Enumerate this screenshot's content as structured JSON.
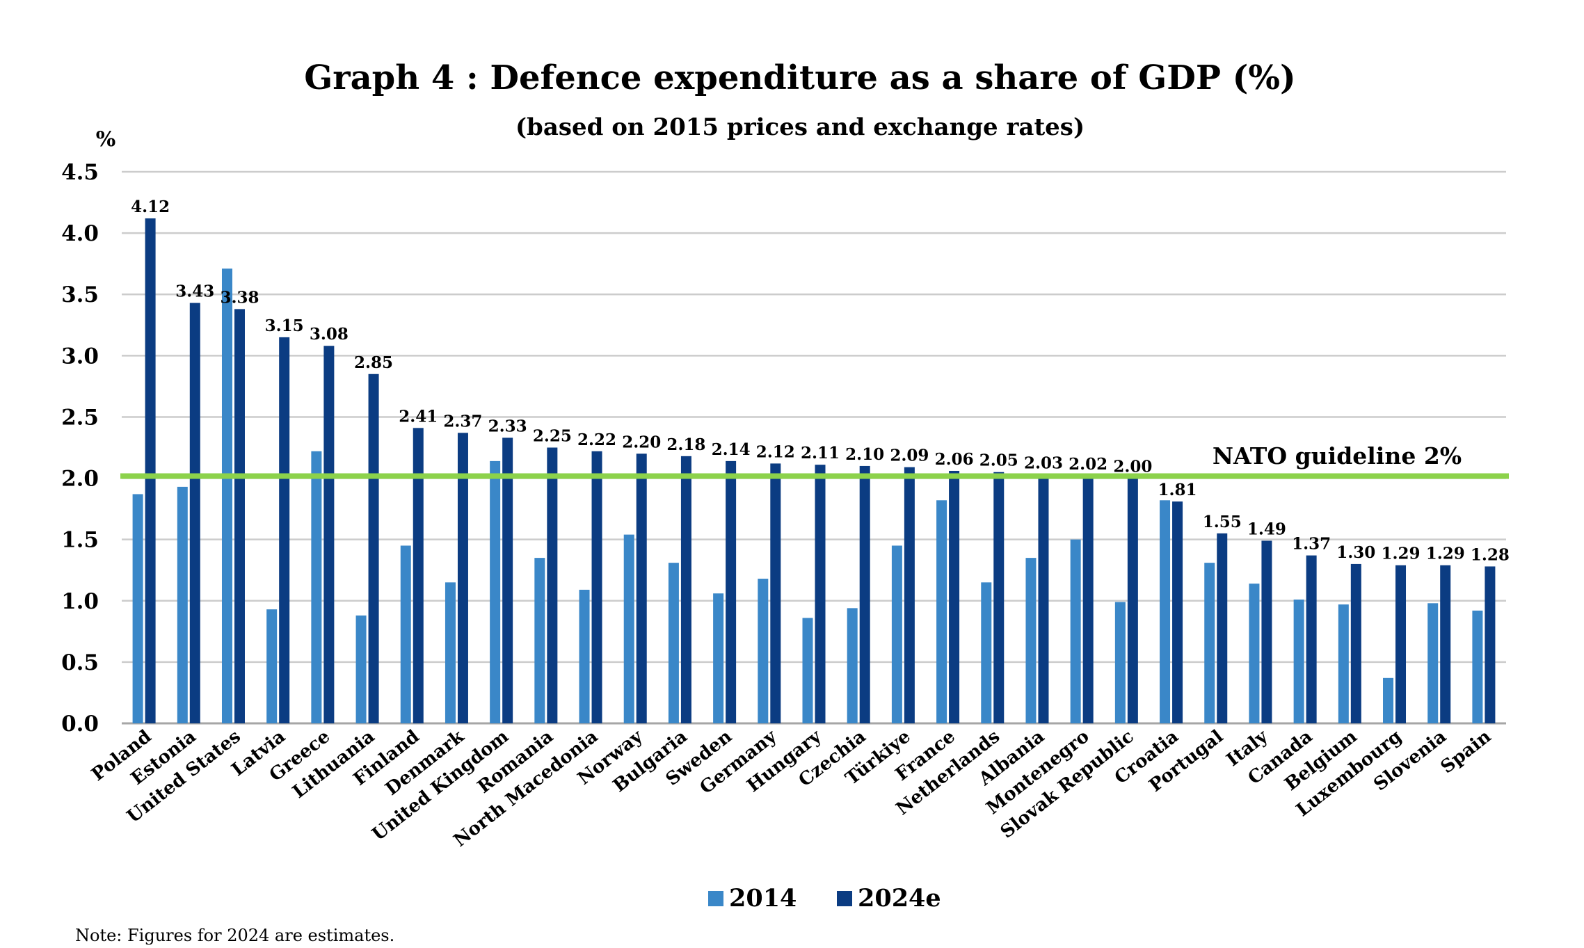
{
  "chart_data": {
    "type": "bar",
    "title": "Graph 4 : Defence expenditure as a share of GDP (%)",
    "subtitle": "(based on 2015 prices and exchange rates)",
    "ylabel": "%",
    "ylim": [
      0,
      4.5
    ],
    "yticks": [
      "0.0",
      "0.5",
      "1.0",
      "1.5",
      "2.0",
      "2.5",
      "3.0",
      "3.5",
      "4.0",
      "4.5"
    ],
    "grid": true,
    "categories": [
      "Poland",
      "Estonia",
      "United States",
      "Latvia",
      "Greece",
      "Lithuania",
      "Finland",
      "Denmark",
      "United Kingdom",
      "Romania",
      "North Macedonia",
      "Norway",
      "Bulgaria",
      "Sweden",
      "Germany",
      "Hungary",
      "Czechia",
      "Türkiye",
      "France",
      "Netherlands",
      "Albania",
      "Montenegro",
      "Slovak Republic",
      "Croatia",
      "Portugal",
      "Italy",
      "Canada",
      "Belgium",
      "Luxembourg",
      "Slovenia",
      "Spain"
    ],
    "series": [
      {
        "name": "2014",
        "color": "#3A87C8",
        "values": [
          1.87,
          1.93,
          3.71,
          0.93,
          2.22,
          0.88,
          1.45,
          1.15,
          2.14,
          1.35,
          1.09,
          1.54,
          1.31,
          1.06,
          1.18,
          0.86,
          0.94,
          1.45,
          1.82,
          1.15,
          1.35,
          1.5,
          0.99,
          1.82,
          1.31,
          1.14,
          1.01,
          0.97,
          0.37,
          0.98,
          0.92
        ]
      },
      {
        "name": "2024e",
        "color": "#0B3C82",
        "values": [
          4.12,
          3.43,
          3.38,
          3.15,
          3.08,
          2.85,
          2.41,
          2.37,
          2.33,
          2.25,
          2.22,
          2.2,
          2.18,
          2.14,
          2.12,
          2.11,
          2.1,
          2.09,
          2.06,
          2.05,
          2.03,
          2.02,
          2.0,
          1.81,
          1.55,
          1.49,
          1.37,
          1.3,
          1.29,
          1.29,
          1.28
        ],
        "labels": [
          "4.12",
          "3.43",
          "3.38",
          "3.15",
          "3.08",
          "2.85",
          "2.41",
          "2.37",
          "2.33",
          "2.25",
          "2.22",
          "2.20",
          "2.18",
          "2.14",
          "2.12",
          "2.11",
          "2.10",
          "2.09",
          "2.06",
          "2.05",
          "2.03",
          "2.02",
          "2.00",
          "1.81",
          "1.55",
          "1.49",
          "1.37",
          "1.30",
          "1.29",
          "1.29",
          "1.28"
        ]
      }
    ],
    "reference_line": {
      "value": 2.0,
      "label": "NATO guideline 2%",
      "color": "#8CD24B"
    },
    "legend": {
      "position": "bottom-center",
      "items": [
        "2014",
        "2024e"
      ]
    },
    "note": "Note: Figures for 2024 are estimates."
  }
}
